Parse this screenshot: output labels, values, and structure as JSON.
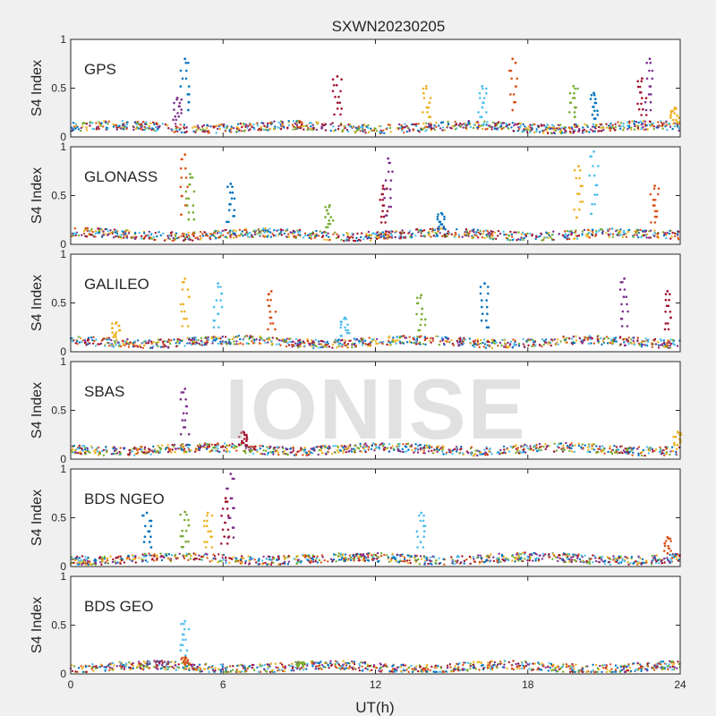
{
  "chart_data": {
    "type": "scatter",
    "title": "SXWN20230205",
    "xlabel": "UT(h)",
    "ylabel": "S4 Index",
    "xlim": [
      0,
      24
    ],
    "ylim": [
      0,
      1
    ],
    "x_ticks": [
      0,
      6,
      12,
      18,
      24
    ],
    "y_ticks": [
      0,
      0.5,
      1
    ],
    "watermark": "IONISE",
    "series_colors": [
      "#0072bd",
      "#d95319",
      "#edb120",
      "#7e2f8e",
      "#77ac30",
      "#4dbeee",
      "#a2142f"
    ],
    "panels": [
      {
        "label": "GPS",
        "baseline": 0.1,
        "spikes": [
          {
            "x": 4.5,
            "y": 0.8
          },
          {
            "x": 4.2,
            "y": 0.4
          },
          {
            "x": 10.5,
            "y": 0.62
          },
          {
            "x": 14.0,
            "y": 0.52
          },
          {
            "x": 16.2,
            "y": 0.52
          },
          {
            "x": 17.4,
            "y": 0.8
          },
          {
            "x": 19.8,
            "y": 0.52
          },
          {
            "x": 20.6,
            "y": 0.45
          },
          {
            "x": 22.8,
            "y": 0.8
          },
          {
            "x": 22.5,
            "y": 0.6
          },
          {
            "x": 23.8,
            "y": 0.3
          }
        ]
      },
      {
        "label": "GLONASS",
        "baseline": 0.1,
        "spikes": [
          {
            "x": 4.5,
            "y": 0.92
          },
          {
            "x": 4.7,
            "y": 0.72
          },
          {
            "x": 6.3,
            "y": 0.62
          },
          {
            "x": 12.5,
            "y": 0.88
          },
          {
            "x": 12.3,
            "y": 0.6
          },
          {
            "x": 20.0,
            "y": 0.8
          },
          {
            "x": 20.6,
            "y": 0.95
          },
          {
            "x": 23.0,
            "y": 0.6
          },
          {
            "x": 10.2,
            "y": 0.4
          },
          {
            "x": 14.6,
            "y": 0.32
          }
        ]
      },
      {
        "label": "GALILEO",
        "baseline": 0.1,
        "spikes": [
          {
            "x": 4.5,
            "y": 0.75
          },
          {
            "x": 5.8,
            "y": 0.7
          },
          {
            "x": 7.9,
            "y": 0.62
          },
          {
            "x": 13.8,
            "y": 0.58
          },
          {
            "x": 16.3,
            "y": 0.7
          },
          {
            "x": 21.8,
            "y": 0.75
          },
          {
            "x": 23.5,
            "y": 0.62
          },
          {
            "x": 1.8,
            "y": 0.3
          },
          {
            "x": 10.8,
            "y": 0.35
          }
        ]
      },
      {
        "label": "SBAS",
        "baseline": 0.1,
        "spikes": [
          {
            "x": 4.5,
            "y": 0.72
          },
          {
            "x": 6.8,
            "y": 0.28
          },
          {
            "x": 23.9,
            "y": 0.28
          }
        ]
      },
      {
        "label": "BDS NGEO",
        "baseline": 0.08,
        "spikes": [
          {
            "x": 4.5,
            "y": 0.56
          },
          {
            "x": 3.0,
            "y": 0.55
          },
          {
            "x": 6.3,
            "y": 0.95
          },
          {
            "x": 6.1,
            "y": 0.7
          },
          {
            "x": 5.4,
            "y": 0.55
          },
          {
            "x": 13.8,
            "y": 0.55
          },
          {
            "x": 23.5,
            "y": 0.3
          }
        ]
      },
      {
        "label": "BDS GEO",
        "baseline": 0.07,
        "spikes": [
          {
            "x": 4.5,
            "y": 0.54
          },
          {
            "x": 4.5,
            "y": 0.17
          },
          {
            "x": 9.0,
            "y": 0.12
          }
        ]
      }
    ]
  }
}
